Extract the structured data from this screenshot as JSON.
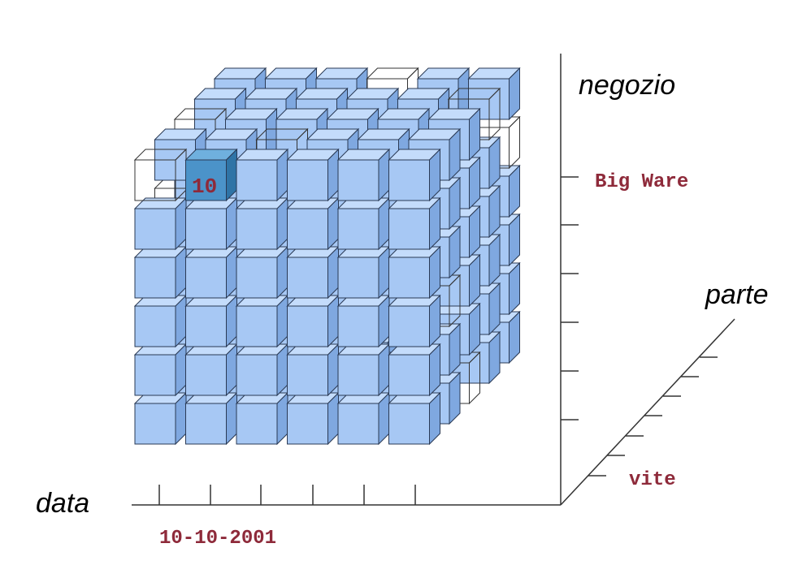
{
  "axes": {
    "vertical": {
      "name": "negozio",
      "highlight_label": "Big Ware"
    },
    "horizontal": {
      "name": "data",
      "highlight_label": "10-10-2001"
    },
    "depth": {
      "name": "parte",
      "highlight_label": "vite"
    }
  },
  "highlighted_cell": {
    "value": "10"
  },
  "colors": {
    "cube_front": "#a7c8f4",
    "cube_top": "#c4dcfb",
    "cube_side": "#7fa8e0",
    "highlight_front": "#4b93c9",
    "highlight_top": "#6fb0de",
    "highlight_side": "#2f74a6",
    "label_accent": "#8e2a3a"
  }
}
